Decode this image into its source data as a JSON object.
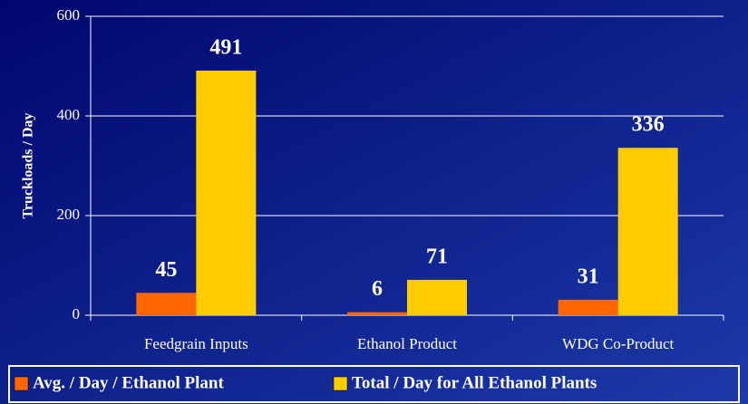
{
  "chart_data": {
    "type": "bar",
    "y_label": "Truckloads / Day",
    "categories": [
      "Feedgrain Inputs",
      "Ethanol Product",
      "WDG Co-Product"
    ],
    "series": [
      {
        "name": "Avg. / Day / Ethanol Plant",
        "color": "#ff6600",
        "values": [
          45,
          6,
          31
        ]
      },
      {
        "name": "Total / Day for All Ethanol Plants",
        "color": "#ffcc00",
        "values": [
          491,
          71,
          336
        ]
      }
    ],
    "ylim": [
      0,
      600
    ],
    "yticks": [
      0,
      200,
      400,
      600
    ],
    "grid": true,
    "legend": "bottom"
  }
}
